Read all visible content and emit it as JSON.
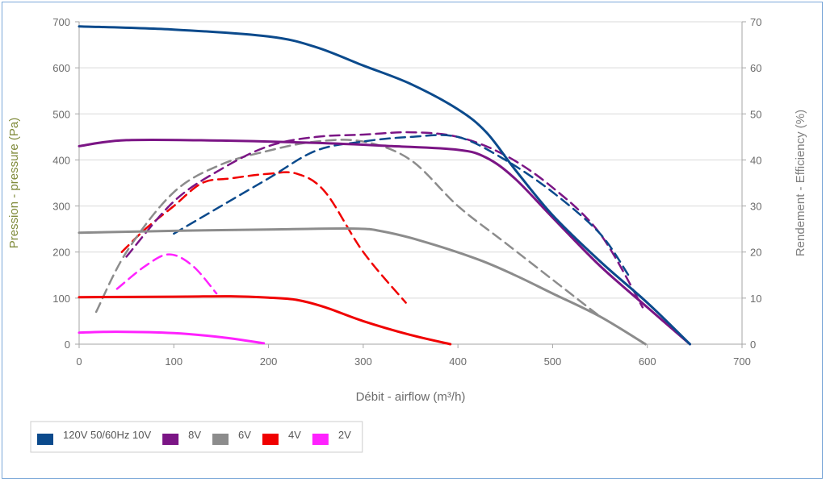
{
  "chart_data": {
    "type": "line",
    "x_axis": {
      "label": "Débit - airflow (m³/h)",
      "min": 0,
      "max": 700,
      "ticks": [
        0,
        100,
        200,
        300,
        400,
        500,
        600,
        700
      ]
    },
    "y_left": {
      "label": "Pression - pressure (Pa)",
      "min": 0,
      "max": 700,
      "ticks": [
        0,
        100,
        200,
        300,
        400,
        500,
        600,
        700
      ],
      "color": "#7f8a3a"
    },
    "y_right": {
      "label": "Rendement - Efficiency (%)",
      "min": 0,
      "max": 70,
      "ticks": [
        0,
        10,
        20,
        30,
        40,
        50,
        60,
        70
      ],
      "color": "#7f7f7f"
    },
    "grid": "horizontal",
    "legend_position": "bottom-left",
    "series": [
      {
        "name": "120V 50/60Hz 10V",
        "color": "#0b4a8c",
        "pressure": [
          [
            0,
            690
          ],
          [
            100,
            683
          ],
          [
            200,
            668
          ],
          [
            250,
            645
          ],
          [
            300,
            605
          ],
          [
            350,
            565
          ],
          [
            400,
            510
          ],
          [
            430,
            460
          ],
          [
            460,
            380
          ],
          [
            500,
            280
          ],
          [
            550,
            180
          ],
          [
            600,
            90
          ],
          [
            645,
            0
          ]
        ],
        "efficiency": [
          [
            100,
            24
          ],
          [
            150,
            30
          ],
          [
            200,
            36
          ],
          [
            250,
            42
          ],
          [
            300,
            44
          ],
          [
            350,
            45
          ],
          [
            400,
            45
          ],
          [
            450,
            40
          ],
          [
            500,
            33
          ],
          [
            550,
            24
          ],
          [
            580,
            15
          ]
        ]
      },
      {
        "name": "8V",
        "color": "#7b1585",
        "pressure": [
          [
            0,
            430
          ],
          [
            50,
            443
          ],
          [
            150,
            442
          ],
          [
            250,
            437
          ],
          [
            330,
            430
          ],
          [
            400,
            422
          ],
          [
            430,
            405
          ],
          [
            460,
            360
          ],
          [
            500,
            275
          ],
          [
            550,
            170
          ],
          [
            600,
            80
          ],
          [
            645,
            0
          ]
        ],
        "efficiency": [
          [
            50,
            19
          ],
          [
            100,
            31
          ],
          [
            150,
            38
          ],
          [
            200,
            43
          ],
          [
            250,
            45
          ],
          [
            300,
            45.5
          ],
          [
            350,
            46
          ],
          [
            400,
            45
          ],
          [
            450,
            41
          ],
          [
            500,
            34
          ],
          [
            550,
            24
          ],
          [
            595,
            8
          ]
        ]
      },
      {
        "name": "6V",
        "color": "#8c8c8c",
        "pressure": [
          [
            0,
            242
          ],
          [
            100,
            246
          ],
          [
            200,
            249
          ],
          [
            290,
            251
          ],
          [
            320,
            245
          ],
          [
            360,
            225
          ],
          [
            420,
            185
          ],
          [
            460,
            150
          ],
          [
            500,
            110
          ],
          [
            550,
            60
          ],
          [
            598,
            0
          ]
        ],
        "efficiency": [
          [
            18,
            7
          ],
          [
            50,
            20
          ],
          [
            100,
            33
          ],
          [
            150,
            39
          ],
          [
            200,
            42
          ],
          [
            250,
            44
          ],
          [
            300,
            44
          ],
          [
            350,
            40
          ],
          [
            400,
            30
          ],
          [
            450,
            22
          ],
          [
            500,
            14
          ],
          [
            550,
            6
          ]
        ]
      },
      {
        "name": "4V",
        "color": "#f00000",
        "pressure": [
          [
            0,
            102
          ],
          [
            100,
            103
          ],
          [
            160,
            104
          ],
          [
            200,
            101
          ],
          [
            230,
            96
          ],
          [
            260,
            80
          ],
          [
            300,
            50
          ],
          [
            350,
            20
          ],
          [
            392,
            0
          ]
        ],
        "efficiency": [
          [
            45,
            20
          ],
          [
            70,
            25
          ],
          [
            100,
            30
          ],
          [
            130,
            35
          ],
          [
            160,
            36
          ],
          [
            200,
            37
          ],
          [
            230,
            37
          ],
          [
            260,
            33
          ],
          [
            300,
            20
          ],
          [
            345,
            9
          ]
        ]
      },
      {
        "name": "2V",
        "color": "#ff22ff",
        "pressure": [
          [
            0,
            25
          ],
          [
            40,
            27
          ],
          [
            100,
            24
          ],
          [
            150,
            15
          ],
          [
            195,
            2
          ]
        ],
        "efficiency": [
          [
            40,
            12
          ],
          [
            70,
            17
          ],
          [
            95,
            19.5
          ],
          [
            120,
            17
          ],
          [
            145,
            11
          ]
        ]
      }
    ]
  }
}
